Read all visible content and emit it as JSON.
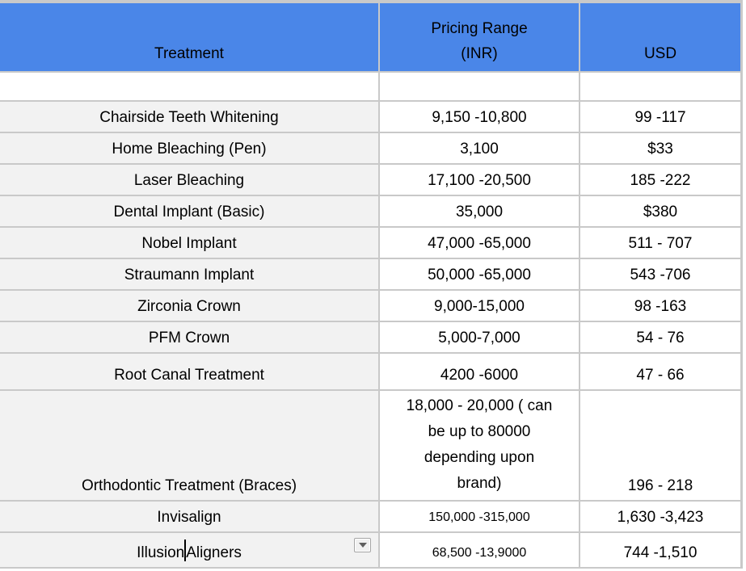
{
  "app": {
    "kind": "spreadsheet-table",
    "colors": {
      "header_background": "#4a86e8",
      "treatment_column_background": "#f2f2f2",
      "gridline": "#c9c9c9",
      "text": "#000000",
      "cell_background": "#ffffff"
    },
    "icons": {
      "dropdown": "chevron-down-icon",
      "caret": "text-cursor"
    }
  },
  "table": {
    "columns": [
      {
        "id": "treatment",
        "label_lines": [
          "Treatment"
        ]
      },
      {
        "id": "inr",
        "label_lines": [
          "Pricing Range",
          "(INR)"
        ]
      },
      {
        "id": "usd",
        "label_lines": [
          "USD"
        ]
      }
    ],
    "rows": [
      {
        "blank": true,
        "treatment": "",
        "inr": "",
        "usd": ""
      },
      {
        "treatment": "Chairside Teeth Whitening",
        "inr": "9,150 -10,800",
        "usd": "99 -117"
      },
      {
        "treatment": "Home Bleaching (Pen)",
        "inr": "3,100",
        "usd": "$33"
      },
      {
        "treatment": "Laser Bleaching",
        "inr": "17,100 -20,500",
        "usd": "185 -222"
      },
      {
        "treatment": "Dental Implant (Basic)",
        "inr": "35,000",
        "usd": "$380"
      },
      {
        "treatment": "Nobel Implant",
        "inr": "47,000 -65,000",
        "usd": "511 - 707"
      },
      {
        "treatment": "Straumann Implant",
        "inr": "50,000 -65,000",
        "usd": "543 -706"
      },
      {
        "treatment": "Zirconia Crown",
        "inr": "9,000-15,000",
        "usd": "98 -163"
      },
      {
        "treatment": "PFM Crown",
        "inr": "5,000-7,000",
        "usd": "54 - 76"
      },
      {
        "treatment": "Root Canal Treatment",
        "inr": "4200 -6000",
        "usd": "47 - 66"
      },
      {
        "treatment": "Orthodontic Treatment (Braces)",
        "inr_lines": [
          "18,000 - 20,000 ( can",
          "be up to 80000",
          "depending upon",
          "brand)"
        ],
        "usd": "196 - 218"
      },
      {
        "treatment": "Invisalign",
        "inr": "150,000 -315,000",
        "usd": "1,630 -3,423",
        "inr_small": true
      },
      {
        "treatment_parts": [
          "Illusion",
          "Aligners"
        ],
        "editing": true,
        "dropdown": true,
        "inr": "68,500 -13,9000",
        "usd": "744 -1,510",
        "inr_small": true
      }
    ]
  }
}
